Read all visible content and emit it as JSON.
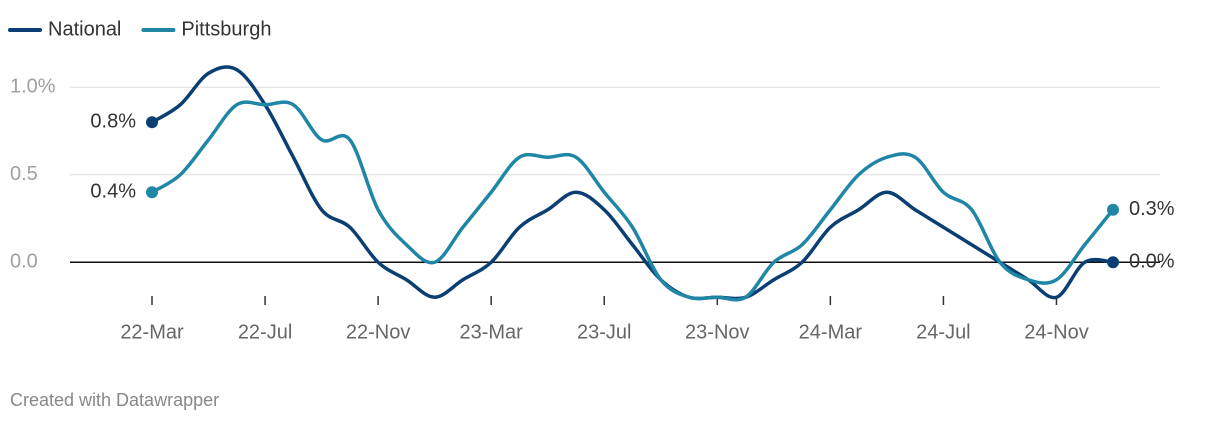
{
  "chart_data": {
    "type": "line",
    "credit": "Created with Datawrapper",
    "categories": [
      "22-Mar",
      null,
      null,
      null,
      "22-Jul",
      null,
      null,
      null,
      "22-Nov",
      null,
      null,
      null,
      "23-Mar",
      null,
      null,
      null,
      "23-Jul",
      null,
      null,
      null,
      "23-Nov",
      null,
      null,
      null,
      "24-Mar",
      null,
      null,
      null,
      "24-Jul",
      null,
      null,
      null,
      "24-Nov",
      null,
      null
    ],
    "series": [
      {
        "name": "National",
        "color": "#0b3f73",
        "values": [
          0.8,
          0.9,
          1.08,
          1.1,
          0.9,
          0.6,
          0.3,
          0.2,
          0.0,
          -0.1,
          -0.2,
          -0.1,
          0.0,
          0.2,
          0.3,
          0.4,
          0.3,
          0.1,
          -0.1,
          -0.2,
          -0.2,
          -0.2,
          -0.1,
          0.0,
          0.2,
          0.3,
          0.4,
          0.3,
          0.2,
          0.1,
          0.0,
          -0.1,
          -0.2,
          0.0,
          0.0
        ],
        "value_labels": [
          "0.8%",
          null,
          null,
          null,
          null,
          null,
          null,
          null,
          null,
          null,
          null,
          null,
          null,
          null,
          null,
          null,
          null,
          null,
          null,
          null,
          null,
          null,
          null,
          null,
          null,
          null,
          null,
          null,
          null,
          null,
          null,
          null,
          null,
          null,
          "0.0%"
        ]
      },
      {
        "name": "Pittsburgh",
        "color": "#1f87a5",
        "values": [
          0.4,
          0.5,
          0.7,
          0.9,
          0.9,
          0.9,
          0.7,
          0.7,
          0.3,
          0.1,
          0.0,
          0.2,
          0.4,
          0.6,
          0.6,
          0.6,
          0.4,
          0.2,
          -0.1,
          -0.2,
          -0.2,
          -0.2,
          0.0,
          0.1,
          0.3,
          0.5,
          0.6,
          0.6,
          0.4,
          0.3,
          0.0,
          -0.1,
          -0.1,
          0.1,
          0.3
        ],
        "value_labels": [
          "0.4%",
          null,
          null,
          null,
          null,
          null,
          null,
          null,
          null,
          null,
          null,
          null,
          null,
          null,
          null,
          null,
          null,
          null,
          null,
          null,
          null,
          null,
          null,
          null,
          null,
          null,
          null,
          null,
          null,
          null,
          null,
          null,
          null,
          null,
          "0.3%"
        ]
      }
    ],
    "ylim": [
      -0.25,
      1.15
    ],
    "yticks": [
      {
        "value": 0,
        "label": "0.0"
      },
      0.5,
      {
        "value": 1,
        "label": "1.0%"
      }
    ],
    "grid": true,
    "legend": "top-left"
  }
}
